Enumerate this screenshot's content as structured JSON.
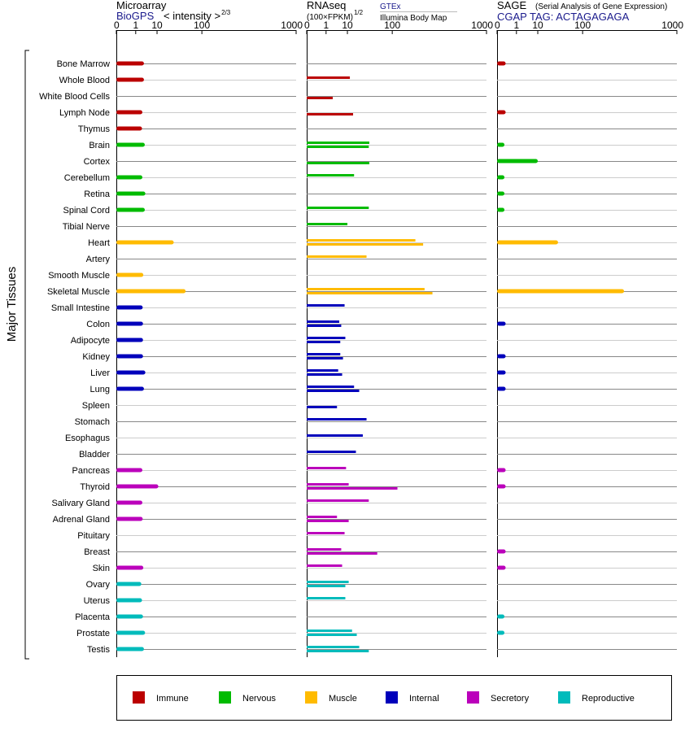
{
  "headers": {
    "microarray": {
      "title": "Microarray",
      "source": "BioGPS",
      "unit_prefix": "< intensity >",
      "unit_exp": "2/3"
    },
    "rnaseq": {
      "title": "RNAseq",
      "unit_prefix": "(100×FPKM)",
      "unit_exp": "1/2",
      "source1": "GTEx",
      "source2": "Illumina Body Map"
    },
    "sage": {
      "title": "SAGE",
      "subtitle": "(Serial Analysis of Gene Expression)",
      "tag": "CGAP TAG: ACTAGAGAGA"
    }
  },
  "side_label": "Major Tissues",
  "colors": {
    "Immune": "#bb0000",
    "Nervous": "#00bb00",
    "Muscle": "#ffbb00",
    "Internal": "#0000bb",
    "Secretory": "#bb00bb",
    "Reproductive": "#00bbbb"
  },
  "chart_data": {
    "type": "bar",
    "axis_ticks": [
      0,
      1,
      10,
      100,
      1000
    ],
    "axis_tick_labels": [
      "0",
      "1",
      "10",
      "100",
      "1000"
    ],
    "xlim": [
      0,
      1000
    ],
    "legend": [
      {
        "name": "Immune",
        "color": "#bb0000"
      },
      {
        "name": "Nervous",
        "color": "#00bb00"
      },
      {
        "name": "Muscle",
        "color": "#ffbb00"
      },
      {
        "name": "Internal",
        "color": "#0000bb"
      },
      {
        "name": "Secretory",
        "color": "#bb00bb"
      },
      {
        "name": "Reproductive",
        "color": "#00bbbb"
      }
    ],
    "legend_position": "bottom",
    "tissues": [
      {
        "name": "Bone Marrow",
        "group": "Immune",
        "micro": 3.0,
        "gtex": null,
        "ibm": null,
        "sage": 0.08
      },
      {
        "name": "Whole Blood",
        "group": "Immune",
        "micro": 3.0,
        "gtex": 12,
        "ibm": null,
        "sage": null
      },
      {
        "name": "White Blood Cells",
        "group": "Immune",
        "micro": null,
        "gtex": null,
        "ibm": 2.5,
        "sage": null
      },
      {
        "name": "Lymph Node",
        "group": "Immune",
        "micro": 2.5,
        "gtex": null,
        "ibm": 15,
        "sage": 0.08
      },
      {
        "name": "Thymus",
        "group": "Immune",
        "micro": 2.4,
        "gtex": null,
        "ibm": null,
        "sage": null
      },
      {
        "name": "Brain",
        "group": "Nervous",
        "micro": 3.3,
        "gtex": 38,
        "ibm": 37,
        "sage": 0.05
      },
      {
        "name": "Cortex",
        "group": "Nervous",
        "micro": null,
        "gtex": null,
        "ibm": 38,
        "sage": 10
      },
      {
        "name": "Cerebellum",
        "group": "Nervous",
        "micro": 2.5,
        "gtex": 16,
        "ibm": null,
        "sage": 0.05
      },
      {
        "name": "Retina",
        "group": "Nervous",
        "micro": 3.5,
        "gtex": null,
        "ibm": null,
        "sage": 0.05
      },
      {
        "name": "Spinal Cord",
        "group": "Nervous",
        "micro": 3.3,
        "gtex": 37,
        "ibm": null,
        "sage": 0.05
      },
      {
        "name": "Tibial Nerve",
        "group": "Nervous",
        "micro": null,
        "gtex": 10,
        "ibm": null,
        "sage": null
      },
      {
        "name": "Heart",
        "group": "Muscle",
        "micro": 29,
        "gtex": 210,
        "ibm": 260,
        "sage": 35
      },
      {
        "name": "Artery",
        "group": "Muscle",
        "micro": null,
        "gtex": 33,
        "ibm": null,
        "sage": null
      },
      {
        "name": "Smooth Muscle",
        "group": "Muscle",
        "micro": 2.8,
        "gtex": null,
        "ibm": null,
        "sage": null
      },
      {
        "name": "Skeletal Muscle",
        "group": "Muscle",
        "micro": 52,
        "gtex": 270,
        "ibm": 330,
        "sage": 340
      },
      {
        "name": "Small Intestine",
        "group": "Internal",
        "micro": 2.6,
        "gtex": 8,
        "ibm": null,
        "sage": null
      },
      {
        "name": "Colon",
        "group": "Internal",
        "micro": 2.7,
        "gtex": 5,
        "ibm": 6,
        "sage": 0.08
      },
      {
        "name": "Adipocyte",
        "group": "Internal",
        "micro": 2.7,
        "gtex": 8.5,
        "ibm": 5.5,
        "sage": null
      },
      {
        "name": "Kidney",
        "group": "Internal",
        "micro": 2.7,
        "gtex": 5.5,
        "ibm": 7,
        "sage": 0.08
      },
      {
        "name": "Liver",
        "group": "Internal",
        "micro": 3.5,
        "gtex": 4.5,
        "ibm": 6.5,
        "sage": 0.08
      },
      {
        "name": "Lung",
        "group": "Internal",
        "micro": 3.0,
        "gtex": 16,
        "ibm": 22,
        "sage": 0.08
      },
      {
        "name": "Spleen",
        "group": "Internal",
        "micro": null,
        "gtex": null,
        "ibm": 4,
        "sage": null
      },
      {
        "name": "Stomach",
        "group": "Internal",
        "micro": null,
        "gtex": 33,
        "ibm": null,
        "sage": null
      },
      {
        "name": "Esophagus",
        "group": "Internal",
        "micro": null,
        "gtex": 27,
        "ibm": null,
        "sage": null
      },
      {
        "name": "Bladder",
        "group": "Internal",
        "micro": null,
        "gtex": 18,
        "ibm": null,
        "sage": null
      },
      {
        "name": "Pancreas",
        "group": "Secretory",
        "micro": 2.5,
        "gtex": 9,
        "ibm": null,
        "sage": 0.08
      },
      {
        "name": "Thyroid",
        "group": "Secretory",
        "micro": 11,
        "gtex": 11,
        "ibm": 120,
        "sage": 0.08
      },
      {
        "name": "Salivary Gland",
        "group": "Secretory",
        "micro": 2.5,
        "gtex": 37,
        "ibm": null,
        "sage": null
      },
      {
        "name": "Adrenal Gland",
        "group": "Secretory",
        "micro": 2.6,
        "gtex": 4,
        "ibm": 11,
        "sage": null
      },
      {
        "name": "Pituitary",
        "group": "Secretory",
        "micro": null,
        "gtex": 8,
        "ibm": null,
        "sage": null
      },
      {
        "name": "Breast",
        "group": "Secretory",
        "micro": null,
        "gtex": 6,
        "ibm": 55,
        "sage": 0.08
      },
      {
        "name": "Skin",
        "group": "Secretory",
        "micro": 2.8,
        "gtex": 6.5,
        "ibm": null,
        "sage": 0.08
      },
      {
        "name": "Ovary",
        "group": "Reproductive",
        "micro": 2.2,
        "gtex": 11,
        "ibm": 8.5,
        "sage": null
      },
      {
        "name": "Uterus",
        "group": "Reproductive",
        "micro": 2.4,
        "gtex": 8.5,
        "ibm": null,
        "sage": null
      },
      {
        "name": "Placenta",
        "group": "Reproductive",
        "micro": 2.7,
        "gtex": null,
        "ibm": null,
        "sage": 0.05
      },
      {
        "name": "Prostate",
        "group": "Reproductive",
        "micro": 3.4,
        "gtex": 14,
        "ibm": 19,
        "sage": 0.05
      },
      {
        "name": "Testis",
        "group": "Reproductive",
        "micro": 3.0,
        "gtex": 22,
        "ibm": 37,
        "sage": null
      }
    ]
  }
}
